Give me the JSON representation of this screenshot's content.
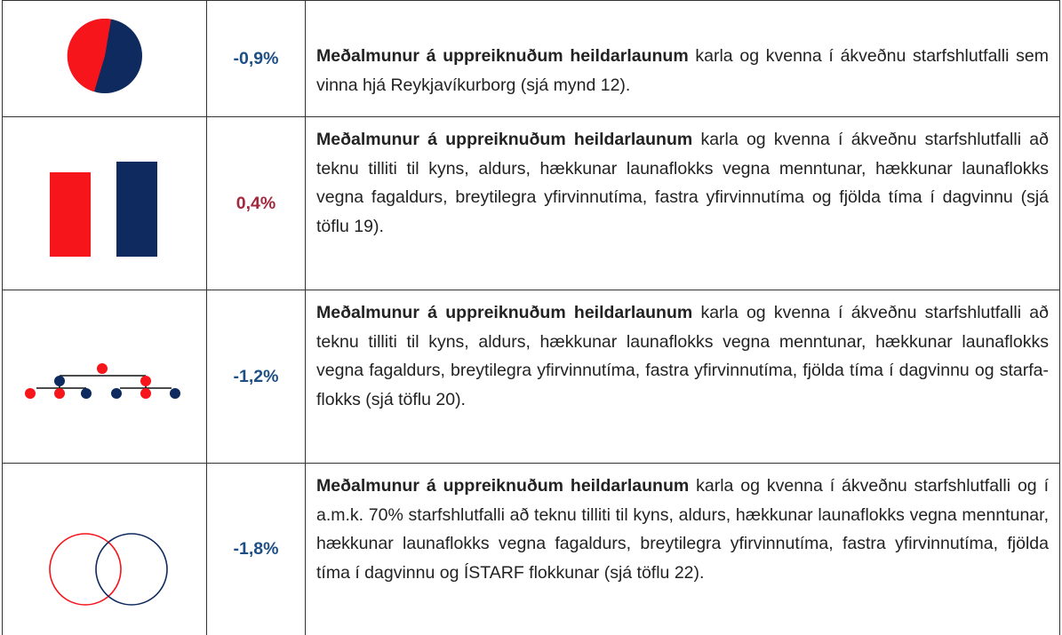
{
  "table": {
    "rows": [
      {
        "value": "-0,9%",
        "bold": "Meðalmunur á uppreiknuðum heildarlaunum",
        "text": " karla og kvenna í ákveðnu starfshlutfalli sem vinna hjá Reykjavíkurborg (sjá mynd 12)."
      },
      {
        "value": "0,4%",
        "bold": "Meðalmunur á uppreiknuðum heildarlaunum",
        "text": " karla og kvenna í ákveðnu starfshlutfalli að teknu tilliti til kyns, aldurs, hækkunar launa­flokks vegna menntunar, hækkunar launaflokks vegna fagaldurs, breyti­legra yfirvinnutíma, fastra yfirvinnutíma og fjölda tíma í dagvinnu (sjá töflu 19)."
      },
      {
        "value": "-1,2%",
        "bold": "Meðalmunur á uppreiknuðum heildarlaunum",
        "text": " karla og kvenna í ákveðnu starfshlutfalli að teknu tilliti til kyns, aldurs, hækkunar launa­flokks vegna menntunar, hækkunar launaflokks vegna fagaldurs, breyti­legra yfirvinnutíma, fastra yfirvinnutíma, fjölda tíma í dagvinnu og starfa­flokks (sjá töflu 20)."
      },
      {
        "value": "-1,8%",
        "bold": "Meðalmunur á uppreiknuðum heildarlaunum",
        "text": " karla og kvenna í ákveðnu starfshlutfalli og í a.m.k. 70% starfshlutfalli að teknu tilliti til kyns, aldurs, hækkunar launaflokks vegna menntunar, hækkunar launa­flokks vegna fagaldurs, breytilegra yfirvinnutíma, fastra yfirvinnutíma, fjölda tíma í dagvinnu og ÍSTARF flokkunar (sjá töflu 22)."
      }
    ]
  }
}
